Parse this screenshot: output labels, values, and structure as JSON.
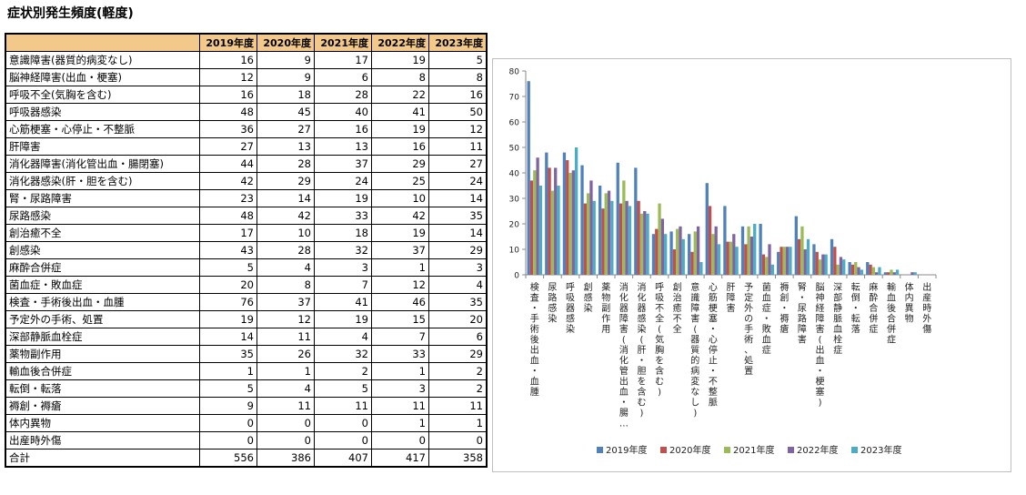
{
  "title": "症状別発生頻度(軽度)",
  "table": {
    "years": [
      "2019年度",
      "2020年度",
      "2021年度",
      "2022年度",
      "2023年度"
    ],
    "rows": [
      {
        "label": "意識障害(器質的病変なし)",
        "values": [
          16,
          9,
          17,
          19,
          5
        ]
      },
      {
        "label": "脳神経障害(出血・梗塞)",
        "values": [
          12,
          9,
          6,
          8,
          8
        ]
      },
      {
        "label": "呼吸不全(気胸を含む)",
        "values": [
          16,
          18,
          28,
          22,
          16
        ]
      },
      {
        "label": "呼吸器感染",
        "values": [
          48,
          45,
          40,
          41,
          50
        ]
      },
      {
        "label": "心筋梗塞・心停止・不整脈",
        "values": [
          36,
          27,
          16,
          19,
          12
        ]
      },
      {
        "label": "肝障害",
        "values": [
          27,
          13,
          13,
          16,
          11
        ]
      },
      {
        "label": "消化器障害(消化管出血・腸閉塞)",
        "values": [
          44,
          28,
          37,
          29,
          27
        ]
      },
      {
        "label": "消化器感染(肝・胆を含む)",
        "values": [
          42,
          29,
          24,
          25,
          24
        ]
      },
      {
        "label": "腎・尿路障害",
        "values": [
          23,
          14,
          19,
          10,
          14
        ]
      },
      {
        "label": "尿路感染",
        "values": [
          48,
          42,
          33,
          42,
          35
        ]
      },
      {
        "label": "創治癒不全",
        "values": [
          17,
          10,
          18,
          19,
          14
        ]
      },
      {
        "label": "創感染",
        "values": [
          43,
          28,
          32,
          37,
          29
        ]
      },
      {
        "label": "麻酔合併症",
        "values": [
          5,
          4,
          3,
          1,
          3
        ]
      },
      {
        "label": "菌血症・敗血症",
        "values": [
          20,
          8,
          7,
          12,
          4
        ]
      },
      {
        "label": "検査・手術後出血・血腫",
        "values": [
          76,
          37,
          41,
          46,
          35
        ]
      },
      {
        "label": "予定外の手術、処置",
        "values": [
          19,
          12,
          19,
          15,
          20
        ]
      },
      {
        "label": "深部静脈血栓症",
        "values": [
          14,
          11,
          4,
          7,
          6
        ]
      },
      {
        "label": "薬物副作用",
        "values": [
          35,
          26,
          32,
          33,
          29
        ]
      },
      {
        "label": "輸血後合併症",
        "values": [
          1,
          1,
          2,
          1,
          2
        ]
      },
      {
        "label": "転倒・転落",
        "values": [
          5,
          4,
          5,
          3,
          2
        ]
      },
      {
        "label": "褥創・褥瘡",
        "values": [
          9,
          11,
          11,
          11,
          11
        ]
      },
      {
        "label": "体内異物",
        "values": [
          0,
          0,
          0,
          1,
          1
        ]
      },
      {
        "label": "出産時外傷",
        "values": [
          0,
          0,
          0,
          0,
          0
        ]
      }
    ],
    "total": {
      "label": "合計",
      "values": [
        556,
        386,
        407,
        417,
        358
      ]
    }
  },
  "chart_data": {
    "type": "bar",
    "ylim": [
      0,
      80
    ],
    "yticks": [
      0,
      10,
      20,
      30,
      40,
      50,
      60,
      70,
      80
    ],
    "grid": false,
    "legend": "bottom",
    "categories": [
      "検査・手術後出血・血腫",
      "尿路感染",
      "呼吸器感染",
      "創感染",
      "薬物副作用",
      "消化器障害(消化管出血・腸…",
      "消化器感染(肝・胆を含む)",
      "呼吸不全(気胸を含む)",
      "創治癒不全",
      "意識障害(器質的病変なし)",
      "心筋梗塞・心停止・不整脈",
      "肝障害",
      "予定外の手術、処置",
      "菌血症・敗血症",
      "褥創・褥瘡",
      "腎・尿路障害",
      "脳神経障害(出血・梗塞)",
      "深部静脈血栓症",
      "転倒・転落",
      "麻酔合併症",
      "輸血後合併症",
      "体内異物",
      "出産時外傷"
    ],
    "series": [
      {
        "name": "2019年度",
        "color": "#4f81bd",
        "values": [
          76,
          48,
          48,
          43,
          35,
          44,
          42,
          16,
          17,
          16,
          36,
          27,
          19,
          20,
          9,
          23,
          12,
          14,
          5,
          5,
          1,
          0,
          0
        ]
      },
      {
        "name": "2020年度",
        "color": "#c0504d",
        "values": [
          37,
          42,
          45,
          28,
          26,
          28,
          29,
          18,
          10,
          9,
          27,
          13,
          12,
          8,
          11,
          14,
          9,
          11,
          4,
          4,
          1,
          0,
          0
        ]
      },
      {
        "name": "2021年度",
        "color": "#9bbb59",
        "values": [
          41,
          33,
          40,
          32,
          32,
          37,
          24,
          28,
          18,
          17,
          16,
          13,
          19,
          7,
          11,
          19,
          6,
          4,
          5,
          3,
          2,
          0,
          0
        ]
      },
      {
        "name": "2022年度",
        "color": "#8064a2",
        "values": [
          46,
          42,
          41,
          37,
          33,
          29,
          25,
          22,
          19,
          19,
          19,
          16,
          15,
          12,
          11,
          10,
          8,
          7,
          3,
          1,
          1,
          1,
          0
        ]
      },
      {
        "name": "2023年度",
        "color": "#4bacc6",
        "values": [
          35,
          35,
          50,
          29,
          29,
          27,
          24,
          16,
          14,
          5,
          12,
          11,
          20,
          4,
          11,
          14,
          8,
          6,
          2,
          3,
          2,
          1,
          0
        ]
      }
    ]
  }
}
